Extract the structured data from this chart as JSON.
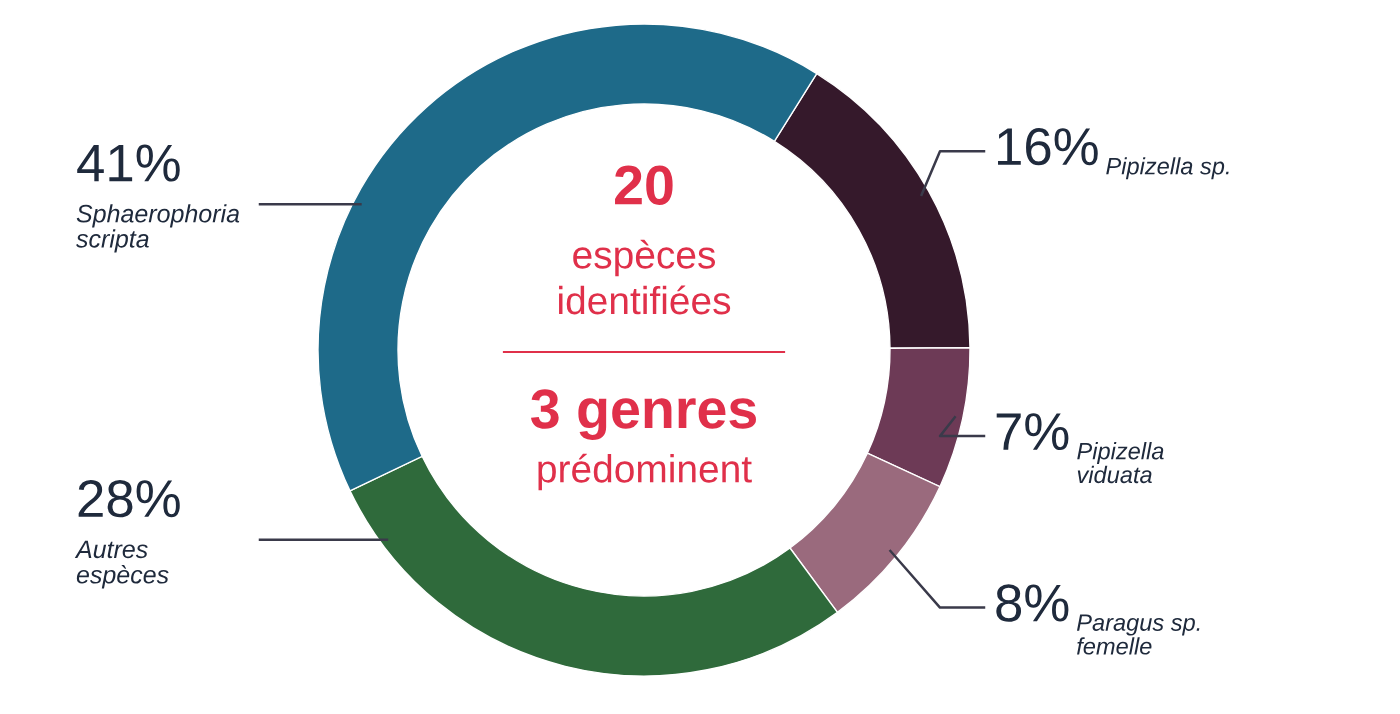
{
  "chart_data": {
    "type": "donut",
    "categories": [
      "Pipizella sp.",
      "Pipizella viduata",
      "Paragus sp. femelle",
      "Autres espèces",
      "Sphaerophoria scripta"
    ],
    "values": [
      16,
      7,
      8,
      28,
      41
    ],
    "value_labels": [
      "16%",
      "7%",
      "8%",
      "28%",
      "41%"
    ],
    "colors": [
      "#35192b",
      "#6d3a56",
      "#9a6a7d",
      "#2f6a3b",
      "#1e6a89"
    ],
    "annotations": [
      "20",
      "espèces",
      "identifiées",
      "3 genres",
      "prédominent"
    ]
  }
}
